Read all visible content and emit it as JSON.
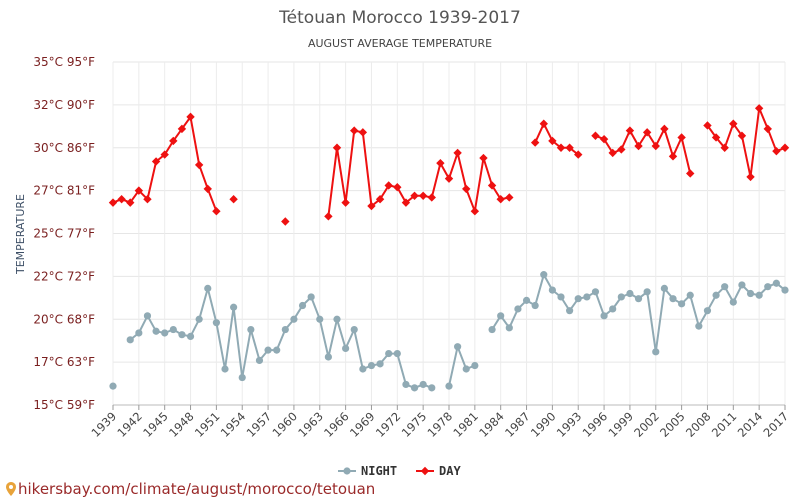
{
  "chart_data": {
    "type": "line",
    "title": "Tétouan Morocco 1939-2017",
    "subtitle": "AUGUST AVERAGE TEMPERATURE",
    "ylabel": "TEMPERATURE",
    "ylim": [
      15,
      35
    ],
    "yticks": [
      {
        "value": 15,
        "label": "15°C 59°F"
      },
      {
        "value": 17.5,
        "label": "17°C 63°F"
      },
      {
        "value": 20,
        "label": "20°C 68°F"
      },
      {
        "value": 22.5,
        "label": "22°C 72°F"
      },
      {
        "value": 25,
        "label": "25°C 77°F"
      },
      {
        "value": 27.5,
        "label": "27°C 81°F"
      },
      {
        "value": 30,
        "label": "30°C 86°F"
      },
      {
        "value": 32.5,
        "label": "32°C 90°F"
      },
      {
        "value": 35,
        "label": "35°C 95°F"
      }
    ],
    "xlim": [
      1939,
      2017
    ],
    "xticks": [
      1939,
      1942,
      1945,
      1948,
      1951,
      1954,
      1957,
      1960,
      1963,
      1966,
      1969,
      1972,
      1975,
      1978,
      1981,
      1984,
      1987,
      1990,
      1993,
      1996,
      1999,
      2002,
      2005,
      2008,
      2011,
      2014,
      2017
    ],
    "grid": true,
    "legend_position": "bottom-center",
    "series": [
      {
        "name": "NIGHT",
        "color": "#90aab4",
        "marker": "circle",
        "points": [
          [
            1939,
            16.1
          ],
          [
            1941,
            18.8
          ],
          [
            1942,
            19.2
          ],
          [
            1943,
            20.2
          ],
          [
            1944,
            19.3
          ],
          [
            1945,
            19.2
          ],
          [
            1946,
            19.4
          ],
          [
            1947,
            19.1
          ],
          [
            1948,
            19.0
          ],
          [
            1949,
            20.0
          ],
          [
            1950,
            21.8
          ],
          [
            1951,
            19.8
          ],
          [
            1952,
            17.1
          ],
          [
            1953,
            20.7
          ],
          [
            1954,
            16.6
          ],
          [
            1955,
            19.4
          ],
          [
            1956,
            17.6
          ],
          [
            1957,
            18.2
          ],
          [
            1958,
            18.2
          ],
          [
            1959,
            19.4
          ],
          [
            1960,
            20.0
          ],
          [
            1961,
            20.8
          ],
          [
            1962,
            21.3
          ],
          [
            1963,
            20.0
          ],
          [
            1964,
            17.8
          ],
          [
            1965,
            20.0
          ],
          [
            1966,
            18.3
          ],
          [
            1967,
            19.4
          ],
          [
            1968,
            17.1
          ],
          [
            1969,
            17.3
          ],
          [
            1970,
            17.4
          ],
          [
            1971,
            18.0
          ],
          [
            1972,
            18.0
          ],
          [
            1973,
            16.2
          ],
          [
            1974,
            16.0
          ],
          [
            1975,
            16.2
          ],
          [
            1976,
            16.0
          ],
          [
            1978,
            16.1
          ],
          [
            1979,
            18.4
          ],
          [
            1980,
            17.1
          ],
          [
            1981,
            17.3
          ],
          [
            1983,
            19.4
          ],
          [
            1984,
            20.2
          ],
          [
            1985,
            19.5
          ],
          [
            1986,
            20.6
          ],
          [
            1987,
            21.1
          ],
          [
            1988,
            20.8
          ],
          [
            1989,
            22.6
          ],
          [
            1990,
            21.7
          ],
          [
            1991,
            21.3
          ],
          [
            1992,
            20.5
          ],
          [
            1993,
            21.2
          ],
          [
            1994,
            21.3
          ],
          [
            1995,
            21.6
          ],
          [
            1996,
            20.2
          ],
          [
            1997,
            20.6
          ],
          [
            1998,
            21.3
          ],
          [
            1999,
            21.5
          ],
          [
            2000,
            21.2
          ],
          [
            2001,
            21.6
          ],
          [
            2002,
            18.1
          ],
          [
            2003,
            21.8
          ],
          [
            2004,
            21.2
          ],
          [
            2005,
            20.9
          ],
          [
            2006,
            21.4
          ],
          [
            2007,
            19.6
          ],
          [
            2008,
            20.5
          ],
          [
            2009,
            21.4
          ],
          [
            2010,
            21.9
          ],
          [
            2011,
            21.0
          ],
          [
            2012,
            22.0
          ],
          [
            2013,
            21.5
          ],
          [
            2014,
            21.4
          ],
          [
            2015,
            21.9
          ],
          [
            2016,
            22.1
          ],
          [
            2017,
            21.7
          ]
        ]
      },
      {
        "name": "DAY",
        "color": "#ee1111",
        "marker": "diamond",
        "points": [
          [
            1939,
            26.8
          ],
          [
            1940,
            27.0
          ],
          [
            1941,
            26.8
          ],
          [
            1942,
            27.5
          ],
          [
            1943,
            27.0
          ],
          [
            1944,
            29.2
          ],
          [
            1945,
            29.6
          ],
          [
            1946,
            30.4
          ],
          [
            1947,
            31.1
          ],
          [
            1948,
            31.8
          ],
          [
            1949,
            29.0
          ],
          [
            1950,
            27.6
          ],
          [
            1951,
            26.3
          ],
          [
            1953,
            27.0
          ],
          [
            1959,
            25.7
          ],
          [
            1964,
            26.0
          ],
          [
            1965,
            30.0
          ],
          [
            1966,
            26.8
          ],
          [
            1967,
            31.0
          ],
          [
            1968,
            30.9
          ],
          [
            1969,
            26.6
          ],
          [
            1970,
            27.0
          ],
          [
            1971,
            27.8
          ],
          [
            1972,
            27.7
          ],
          [
            1973,
            26.8
          ],
          [
            1974,
            27.2
          ],
          [
            1975,
            27.2
          ],
          [
            1976,
            27.1
          ],
          [
            1977,
            29.1
          ],
          [
            1978,
            28.2
          ],
          [
            1979,
            29.7
          ],
          [
            1980,
            27.6
          ],
          [
            1981,
            26.3
          ],
          [
            1982,
            29.4
          ],
          [
            1983,
            27.8
          ],
          [
            1984,
            27.0
          ],
          [
            1985,
            27.1
          ],
          [
            1988,
            30.3
          ],
          [
            1989,
            31.4
          ],
          [
            1990,
            30.4
          ],
          [
            1991,
            30.0
          ],
          [
            1992,
            30.0
          ],
          [
            1993,
            29.6
          ],
          [
            1995,
            30.7
          ],
          [
            1996,
            30.5
          ],
          [
            1997,
            29.7
          ],
          [
            1998,
            29.9
          ],
          [
            1999,
            31.0
          ],
          [
            2000,
            30.1
          ],
          [
            2001,
            30.9
          ],
          [
            2002,
            30.1
          ],
          [
            2003,
            31.1
          ],
          [
            2004,
            29.5
          ],
          [
            2005,
            30.6
          ],
          [
            2006,
            28.5
          ],
          [
            2008,
            31.3
          ],
          [
            2009,
            30.6
          ],
          [
            2010,
            30.0
          ],
          [
            2011,
            31.4
          ],
          [
            2012,
            30.7
          ],
          [
            2013,
            28.3
          ],
          [
            2014,
            32.3
          ],
          [
            2015,
            31.1
          ],
          [
            2016,
            29.8
          ],
          [
            2017,
            30.0
          ]
        ]
      }
    ]
  },
  "footer": {
    "url": "hikersbay.com/climate/august/morocco/tetouan"
  }
}
